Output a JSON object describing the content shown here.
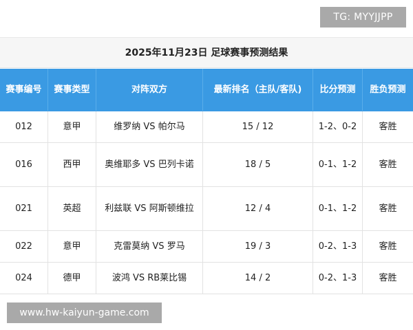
{
  "watermarks": {
    "top_right": "TG: MYYJJPP",
    "bottom_left": "www.hw-kaiyun-game.com"
  },
  "table": {
    "title": "2025年11月23日 足球赛事预测结果",
    "headers": [
      "赛事编号",
      "赛事类型",
      "对阵双方",
      "最新排名（主队/客队)",
      "比分预测",
      "胜负预测"
    ],
    "rows": [
      [
        "012",
        "意甲",
        "维罗纳 VS 帕尔马",
        "15 / 12",
        "1-2、0-2",
        "客胜"
      ],
      [
        "016",
        "西甲",
        "奥维耶多 VS 巴列卡诺",
        "18 / 5",
        "0-1、1-2",
        "客胜"
      ],
      [
        "021",
        "英超",
        "利兹联 VS 阿斯顿维拉",
        "12 / 4",
        "0-1、1-2",
        "客胜"
      ],
      [
        "022",
        "意甲",
        "克雷莫纳 VS 罗马",
        "19 / 3",
        "0-2、1-3",
        "客胜"
      ],
      [
        "024",
        "德甲",
        "波鸿 VS RB莱比锡",
        "14 / 2",
        "0-2、1-3",
        "客胜"
      ]
    ]
  }
}
